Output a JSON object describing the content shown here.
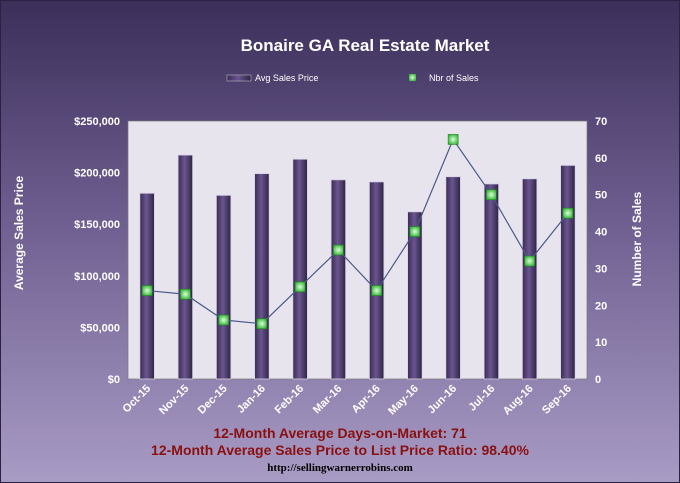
{
  "chart_data": {
    "type": "bar",
    "title": "Bonaire GA Real Estate Market",
    "categories": [
      "Oct-15",
      "Nov-15",
      "Dec-15",
      "Jan-16",
      "Feb-16",
      "Mar-16",
      "Apr-16",
      "May-16",
      "Jun-16",
      "Jul-16",
      "Aug-16",
      "Sep-16"
    ],
    "series": [
      {
        "name": "Avg Sales Price",
        "type": "bar",
        "axis": "left",
        "values": [
          180000,
          217000,
          178000,
          199000,
          213000,
          193000,
          191000,
          162000,
          196000,
          189000,
          194000,
          207000
        ]
      },
      {
        "name": "Nbr of Sales",
        "type": "line",
        "axis": "right",
        "values": [
          24,
          23,
          16,
          15,
          25,
          35,
          24,
          40,
          65,
          50,
          32,
          45
        ]
      }
    ],
    "ylabel": "Average Sales Price",
    "y2label": "Number of Sales",
    "ylim": [
      0,
      250000
    ],
    "y2lim": [
      0,
      70
    ],
    "yticks": [
      "$0",
      "$50,000",
      "$100,000",
      "$150,000",
      "$200,000",
      "$250,000"
    ],
    "y2ticks": [
      "0",
      "10",
      "20",
      "30",
      "40",
      "50",
      "60",
      "70"
    ],
    "legend_position": "top"
  },
  "footer": {
    "days_on_market": "12-Month Average Days-on-Market: 71",
    "price_ratio": "12-Month Average Sales Price to List Price Ratio: 98.40%",
    "url": "http://sellingwarnerrobins.com"
  },
  "colors": {
    "bar": "#5a4678",
    "line": "#4a5a8a",
    "marker": "#5ee05e",
    "plot_bg": "#e8e4ee"
  }
}
